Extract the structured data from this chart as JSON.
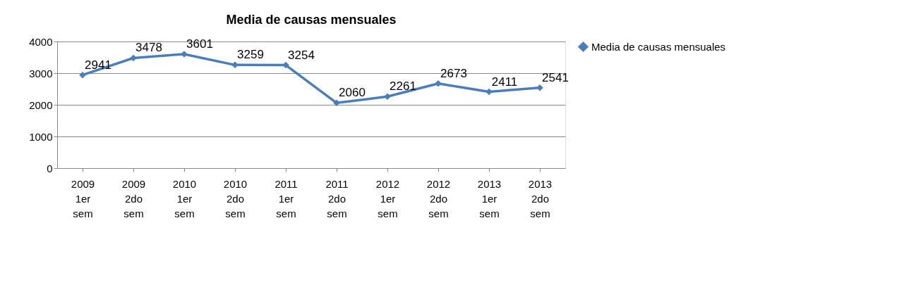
{
  "chart_data": {
    "type": "line",
    "title": "Media de causas mensuales",
    "categories": [
      "2009 1er sem",
      "2009 2do sem",
      "2010 1er sem",
      "2010 2do sem",
      "2011 1er sem",
      "2011 2do sem",
      "2012 1er sem",
      "2012 2do sem",
      "2013 1er sem",
      "2013 2do sem"
    ],
    "series": [
      {
        "name": "Media de causas mensuales",
        "color": "#4a7ebb",
        "values": [
          2941,
          3478,
          3601,
          3259,
          3254,
          2060,
          2261,
          2673,
          2411,
          2541
        ]
      }
    ],
    "ylim": [
      0,
      4000
    ],
    "yticks": [
      0,
      1000,
      2000,
      3000,
      4000
    ],
    "grid": "y",
    "legend": "right",
    "marker": "diamond",
    "line_style": "solid",
    "data_labels": true
  }
}
